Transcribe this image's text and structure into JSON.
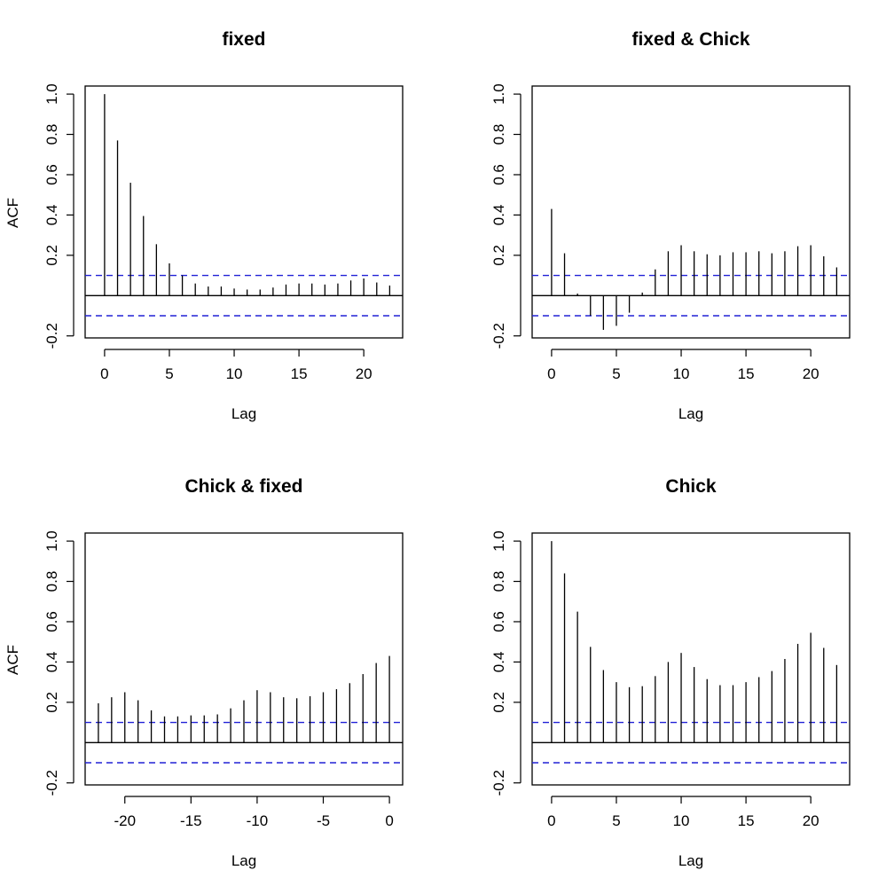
{
  "chart_data": [
    {
      "type": "bar",
      "title": "fixed",
      "xlabel": "Lag",
      "ylabel": "ACF",
      "xlim": [
        -1.5,
        23
      ],
      "ylim": [
        -0.21,
        1.04
      ],
      "xticks": [
        0,
        5,
        10,
        15,
        20
      ],
      "xtick_labels": [
        "0",
        "5",
        "10",
        "15",
        "20"
      ],
      "yticks": [
        -0.2,
        0.2,
        0.4,
        0.6,
        0.8,
        1.0
      ],
      "ytick_labels": [
        "-0.2",
        "0.2",
        "0.4",
        "0.6",
        "0.8",
        "1.0"
      ],
      "confidence_limit": 0.1,
      "x": [
        0,
        1,
        2,
        3,
        4,
        5,
        6,
        7,
        8,
        9,
        10,
        11,
        12,
        13,
        14,
        15,
        16,
        17,
        18,
        19,
        20,
        21,
        22
      ],
      "values": [
        1.0,
        0.77,
        0.56,
        0.395,
        0.255,
        0.16,
        0.1,
        0.06,
        0.045,
        0.045,
        0.035,
        0.03,
        0.03,
        0.04,
        0.055,
        0.06,
        0.06,
        0.055,
        0.06,
        0.075,
        0.085,
        0.065,
        0.05
      ]
    },
    {
      "type": "bar",
      "title": "fixed & Chick",
      "xlabel": "Lag",
      "ylabel": "",
      "xlim": [
        -1.5,
        23
      ],
      "ylim": [
        -0.21,
        1.04
      ],
      "xticks": [
        0,
        5,
        10,
        15,
        20
      ],
      "xtick_labels": [
        "0",
        "5",
        "10",
        "15",
        "20"
      ],
      "yticks": [
        -0.2,
        0.2,
        0.4,
        0.6,
        0.8,
        1.0
      ],
      "ytick_labels": [
        "-0.2",
        "0.2",
        "0.4",
        "0.6",
        "0.8",
        "1.0"
      ],
      "confidence_limit": 0.1,
      "x": [
        0,
        1,
        2,
        3,
        4,
        5,
        6,
        7,
        8,
        9,
        10,
        11,
        12,
        13,
        14,
        15,
        16,
        17,
        18,
        19,
        20,
        21,
        22
      ],
      "values": [
        0.43,
        0.21,
        0.01,
        -0.1,
        -0.17,
        -0.15,
        -0.085,
        0.015,
        0.13,
        0.22,
        0.25,
        0.22,
        0.205,
        0.2,
        0.215,
        0.215,
        0.22,
        0.21,
        0.22,
        0.245,
        0.25,
        0.195,
        0.14
      ]
    },
    {
      "type": "bar",
      "title": "Chick & fixed",
      "xlabel": "Lag",
      "ylabel": "ACF",
      "xlim": [
        -23,
        1
      ],
      "ylim": [
        -0.21,
        1.04
      ],
      "xticks": [
        -20,
        -15,
        -10,
        -5,
        0
      ],
      "xtick_labels": [
        "-20",
        "-15",
        "-10",
        "-5",
        "0"
      ],
      "yticks": [
        -0.2,
        0.2,
        0.4,
        0.6,
        0.8,
        1.0
      ],
      "ytick_labels": [
        "-0.2",
        "0.2",
        "0.4",
        "0.6",
        "0.8",
        "1.0"
      ],
      "confidence_limit": 0.1,
      "x": [
        -22,
        -21,
        -20,
        -19,
        -18,
        -17,
        -16,
        -15,
        -14,
        -13,
        -12,
        -11,
        -10,
        -9,
        -8,
        -7,
        -6,
        -5,
        -4,
        -3,
        -2,
        -1,
        0
      ],
      "values": [
        0.195,
        0.225,
        0.25,
        0.21,
        0.16,
        0.13,
        0.13,
        0.135,
        0.135,
        0.14,
        0.17,
        0.21,
        0.26,
        0.25,
        0.225,
        0.22,
        0.23,
        0.25,
        0.265,
        0.295,
        0.34,
        0.395,
        0.43
      ]
    },
    {
      "type": "bar",
      "title": "Chick",
      "xlabel": "Lag",
      "ylabel": "",
      "xlim": [
        -1.5,
        23
      ],
      "ylim": [
        -0.21,
        1.04
      ],
      "xticks": [
        0,
        5,
        10,
        15,
        20
      ],
      "xtick_labels": [
        "0",
        "5",
        "10",
        "15",
        "20"
      ],
      "yticks": [
        -0.2,
        0.2,
        0.4,
        0.6,
        0.8,
        1.0
      ],
      "ytick_labels": [
        "-0.2",
        "0.2",
        "0.4",
        "0.6",
        "0.8",
        "1.0"
      ],
      "confidence_limit": 0.1,
      "x": [
        0,
        1,
        2,
        3,
        4,
        5,
        6,
        7,
        8,
        9,
        10,
        11,
        12,
        13,
        14,
        15,
        16,
        17,
        18,
        19,
        20,
        21,
        22
      ],
      "values": [
        1.0,
        0.84,
        0.65,
        0.475,
        0.36,
        0.3,
        0.275,
        0.28,
        0.33,
        0.4,
        0.445,
        0.375,
        0.315,
        0.285,
        0.285,
        0.3,
        0.325,
        0.355,
        0.415,
        0.49,
        0.545,
        0.47,
        0.385
      ]
    }
  ],
  "colors": {
    "axis": "#000000",
    "spike": "#000000",
    "confidence": "#2121d6"
  }
}
